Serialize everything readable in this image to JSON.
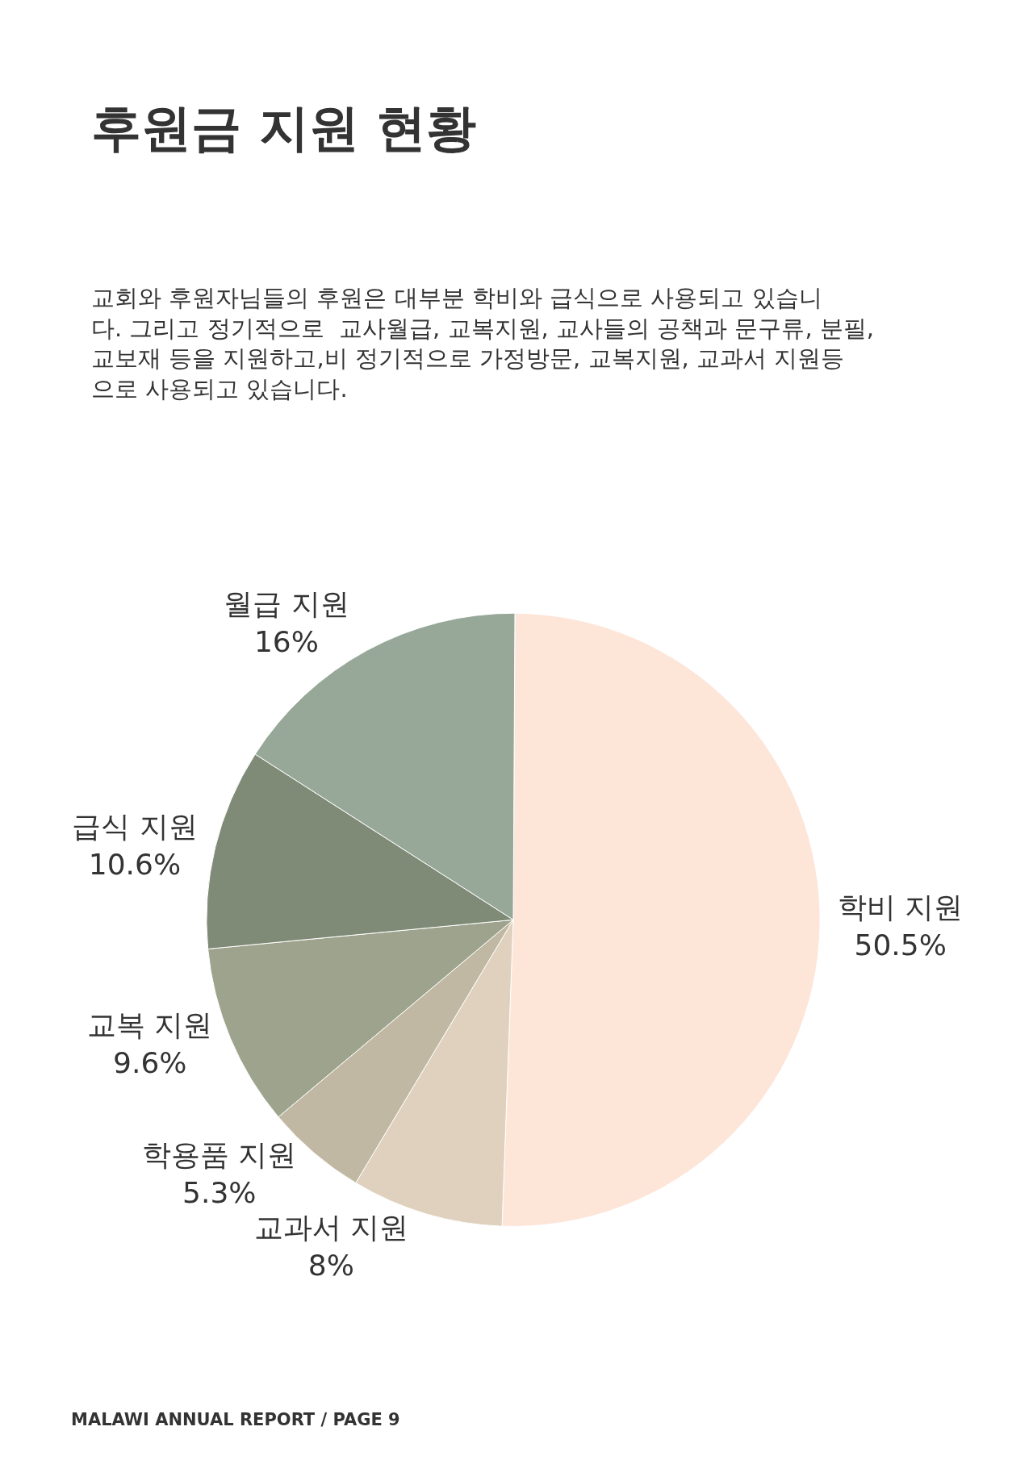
{
  "chart_data": {
    "type": "pie",
    "title": "후원금 지원 현황",
    "subtitle": "교회와 후원자님들의 후원은 대부분 학비와 급식으로 사용되고 있습니\n다. 그리고 정기적으로  교사월급, 교복지원, 교사들의 공책과 문구류, 분필,\n교보재 등을 지원하고,비 정기적으로 가정방문, 교복지원, 교과서 지원등\n으로 사용되고 있습니다.",
    "categories": [
      "학비 지원",
      "교과서 지원",
      "학용품 지원",
      "교복 지원",
      "급식 지원",
      "월급 지원"
    ],
    "values": [
      50.5,
      8,
      5.3,
      9.6,
      10.6,
      16
    ],
    "value_labels": [
      "50.5%",
      "8%",
      "5.3%",
      "9.6%",
      "10.6%",
      "16%"
    ],
    "colors": [
      "#fde5d8",
      "#dfd1bd",
      "#c0b8a2",
      "#9da38c",
      "#808b77",
      "#97a898"
    ],
    "legend": false,
    "annotations": [
      "MALAWI ANNUAL REPORT / PAGE 9"
    ]
  }
}
